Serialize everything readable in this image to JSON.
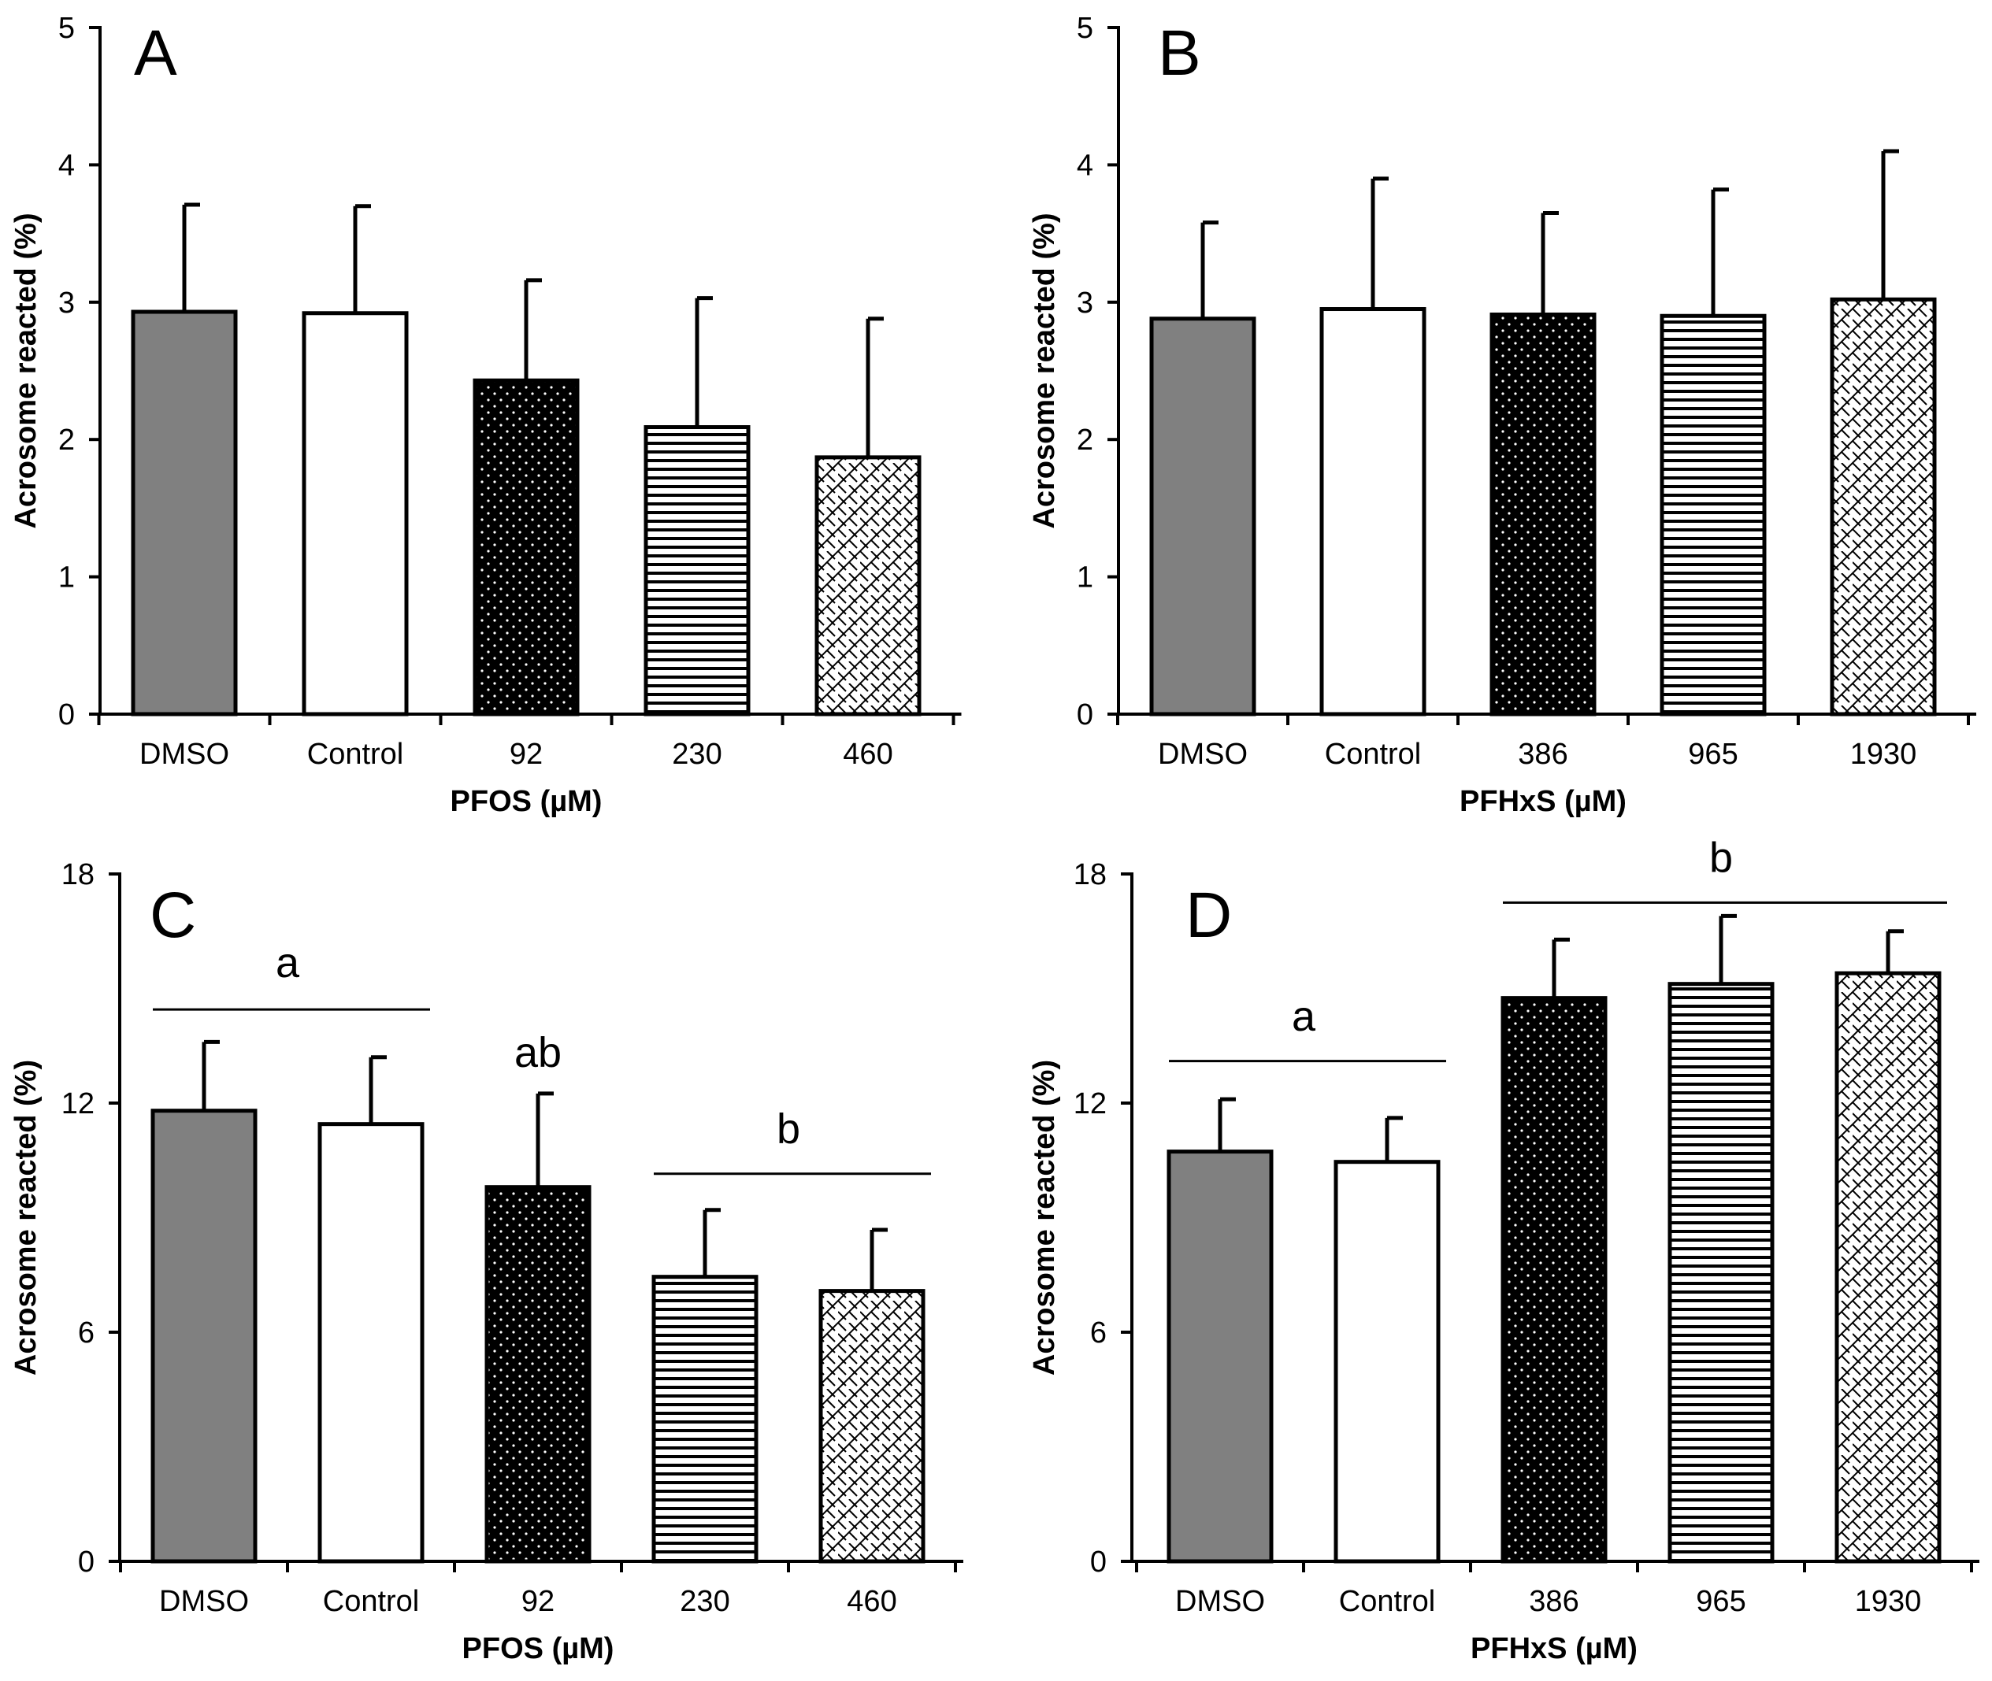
{
  "figure": {
    "colors": {
      "axis": "#000000",
      "dmso_fill": "#808080",
      "control_fill": "#ffffff",
      "dots_fill": "#000000",
      "pattern_line": "#000000",
      "background": "#ffffff"
    }
  },
  "chart_data": [
    {
      "type": "bar",
      "panel_letter": "A",
      "xlabel": "PFOS (µM)",
      "ylabel": "Acrosome reacted (%)",
      "ylim": [
        0,
        5
      ],
      "yticks": [
        "0",
        "1",
        "2",
        "3",
        "4",
        "5"
      ],
      "categories": [
        "DMSO",
        "Control",
        "92",
        "230",
        "460"
      ],
      "values": [
        2.93,
        2.92,
        2.43,
        2.09,
        1.87
      ],
      "errors": [
        0.78,
        0.78,
        0.73,
        0.94,
        1.01
      ],
      "patterns": [
        "gray",
        "white",
        "dots",
        "hlines",
        "bricks"
      ],
      "groups": []
    },
    {
      "type": "bar",
      "panel_letter": "B",
      "xlabel": "PFHxS (µM)",
      "ylabel": "Acrosome reacted (%)",
      "ylim": [
        0,
        5
      ],
      "yticks": [
        "0",
        "1",
        "2",
        "3",
        "4",
        "5"
      ],
      "categories": [
        "DMSO",
        "Control",
        "386",
        "965",
        "1930"
      ],
      "values": [
        2.88,
        2.95,
        2.91,
        2.9,
        3.02
      ],
      "errors": [
        0.7,
        0.95,
        0.74,
        0.92,
        1.08
      ],
      "patterns": [
        "gray",
        "white",
        "dots",
        "hlines",
        "bricks"
      ],
      "groups": []
    },
    {
      "type": "bar",
      "panel_letter": "C",
      "xlabel": "PFOS (µM)",
      "ylabel": "Acrosome reacted (%)",
      "ylim": [
        0,
        18
      ],
      "yticks": [
        "0",
        "6",
        "12",
        "18"
      ],
      "categories": [
        "DMSO",
        "Control",
        "92",
        "230",
        "460"
      ],
      "values": [
        11.8,
        11.45,
        9.8,
        7.45,
        7.08
      ],
      "errors": [
        1.8,
        1.75,
        2.45,
        1.75,
        1.6
      ],
      "patterns": [
        "gray",
        "white",
        "dots",
        "hlines",
        "bricks"
      ],
      "groups": [
        {
          "label": "a",
          "from": 0,
          "to": 1,
          "line_y": 14.45,
          "label_y": 15.3
        },
        {
          "label": "ab",
          "from": 2,
          "to": 2,
          "line_y": null,
          "label_y": 12.95
        },
        {
          "label": "b",
          "from": 3,
          "to": 4,
          "line_y": 10.15,
          "label_y": 10.95
        }
      ]
    },
    {
      "type": "bar",
      "panel_letter": "D",
      "xlabel": "PFHxS (µM)",
      "ylabel": "Acrosome reacted (%)",
      "ylim": [
        0,
        18
      ],
      "yticks": [
        "0",
        "6",
        "12",
        "18"
      ],
      "categories": [
        "DMSO",
        "Control",
        "386",
        "965",
        "1930"
      ],
      "values": [
        10.73,
        10.46,
        14.75,
        15.12,
        15.4
      ],
      "errors": [
        1.37,
        1.15,
        1.53,
        1.78,
        1.1
      ],
      "patterns": [
        "gray",
        "white",
        "dots",
        "hlines",
        "bricks"
      ],
      "groups": [
        {
          "label": "a",
          "from": 0,
          "to": 1,
          "line_y": 13.1,
          "label_y": 13.9
        },
        {
          "label": "b",
          "from": 2,
          "to": 4,
          "line_y": 17.25,
          "label_y": 18.05
        }
      ]
    }
  ]
}
